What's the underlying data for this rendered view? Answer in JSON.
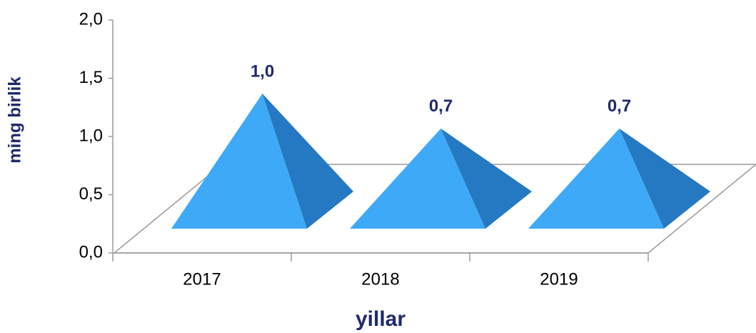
{
  "chart_data": {
    "type": "pyramid",
    "y_label": "ming birlik",
    "x_label": "yillar",
    "categories": [
      "2017",
      "2018",
      "2019"
    ],
    "values": [
      1.0,
      0.7,
      0.7
    ],
    "value_labels": [
      "1,0",
      "0,7",
      "0,7"
    ],
    "colors": {
      "front": "#3ea9f7",
      "side": "#2479c2"
    },
    "ylim": [
      0,
      2
    ],
    "yticks": [
      {
        "value": 0,
        "label": "0,0"
      },
      {
        "value": 0.5,
        "label": "0,5"
      },
      {
        "value": 1,
        "label": "1,0"
      },
      {
        "value": 1.5,
        "label": "1,5"
      },
      {
        "value": 2,
        "label": "2,0"
      }
    ]
  }
}
